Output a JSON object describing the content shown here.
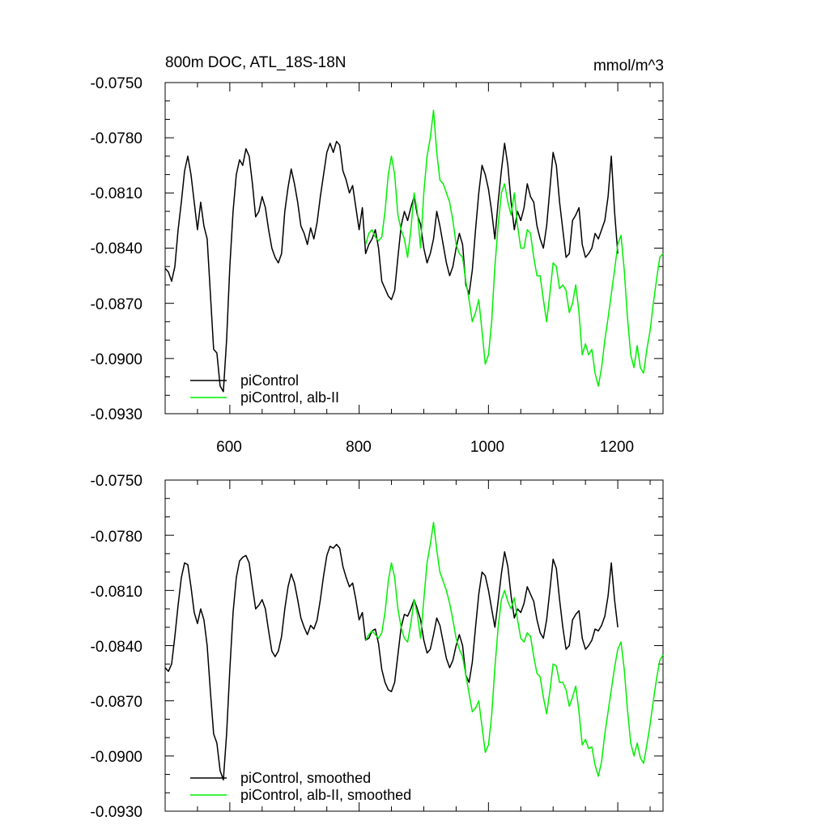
{
  "colors": {
    "piControl": "#000000",
    "alb_II": "#00ee00"
  },
  "chart_data": [
    {
      "type": "line",
      "title": "800m DOC, ATL_18S-18N",
      "units": "mmol/m^3",
      "xlim": [
        500,
        1270
      ],
      "ylim": [
        -0.093,
        -0.075
      ],
      "xticks": [
        "600",
        "800",
        "1000",
        "1200"
      ],
      "yticks": [
        "-0.0750",
        "-0.0780",
        "-0.0810",
        "-0.0840",
        "-0.0870",
        "-0.0900",
        "-0.0930"
      ],
      "legend": [
        "piControl",
        "piControl, alb-II"
      ],
      "series": [
        {
          "name": "piControl",
          "color": "#000000",
          "x": [
            500,
            505,
            510,
            515,
            520,
            525,
            530,
            535,
            540,
            545,
            550,
            555,
            560,
            565,
            570,
            575,
            580,
            585,
            590,
            595,
            600,
            605,
            610,
            615,
            620,
            625,
            630,
            635,
            640,
            645,
            650,
            655,
            660,
            665,
            670,
            675,
            680,
            685,
            690,
            695,
            700,
            705,
            710,
            715,
            720,
            725,
            730,
            735,
            740,
            745,
            750,
            755,
            760,
            765,
            770,
            775,
            780,
            785,
            790,
            795,
            800,
            805,
            810,
            815,
            820,
            825,
            830,
            835,
            840,
            845,
            850,
            855,
            860,
            865,
            870,
            875,
            880,
            885,
            890,
            895,
            900,
            905,
            910,
            915,
            920,
            925,
            930,
            935,
            940,
            945,
            950,
            955,
            960,
            965,
            970,
            975,
            980,
            985,
            990,
            995,
            1000,
            1005,
            1010,
            1015,
            1020,
            1025,
            1030,
            1035,
            1040,
            1045,
            1050,
            1055,
            1060,
            1065,
            1070,
            1075,
            1080,
            1085,
            1090,
            1095,
            1100,
            1105,
            1110,
            1115,
            1120,
            1125,
            1130,
            1135,
            1140,
            1145,
            1150,
            1155,
            1160,
            1165,
            1170,
            1175,
            1180,
            1185,
            1190,
            1195,
            1200
          ],
          "y": [
            -0.0851,
            -0.0853,
            -0.0858,
            -0.085,
            -0.083,
            -0.0815,
            -0.0798,
            -0.079,
            -0.08,
            -0.0815,
            -0.083,
            -0.0815,
            -0.0828,
            -0.0835,
            -0.0865,
            -0.0895,
            -0.0897,
            -0.0915,
            -0.0918,
            -0.089,
            -0.085,
            -0.082,
            -0.08,
            -0.0792,
            -0.0795,
            -0.0786,
            -0.079,
            -0.0805,
            -0.0823,
            -0.082,
            -0.0812,
            -0.0818,
            -0.083,
            -0.084,
            -0.0845,
            -0.0848,
            -0.0843,
            -0.082,
            -0.0807,
            -0.0797,
            -0.0805,
            -0.0815,
            -0.0828,
            -0.0832,
            -0.0838,
            -0.0829,
            -0.0835,
            -0.0826,
            -0.0812,
            -0.08,
            -0.0788,
            -0.0783,
            -0.0788,
            -0.0782,
            -0.0784,
            -0.0798,
            -0.0803,
            -0.081,
            -0.0806,
            -0.0818,
            -0.083,
            -0.0818,
            -0.0843,
            -0.0838,
            -0.0835,
            -0.083,
            -0.084,
            -0.0858,
            -0.0862,
            -0.0866,
            -0.0868,
            -0.0863,
            -0.0845,
            -0.0828,
            -0.082,
            -0.0825,
            -0.0818,
            -0.0812,
            -0.0822,
            -0.0827,
            -0.084,
            -0.0848,
            -0.0843,
            -0.0835,
            -0.082,
            -0.0828,
            -0.0838,
            -0.0848,
            -0.0855,
            -0.085,
            -0.084,
            -0.0832,
            -0.0838,
            -0.086,
            -0.0865,
            -0.0852,
            -0.083,
            -0.081,
            -0.0795,
            -0.08,
            -0.0808,
            -0.082,
            -0.0835,
            -0.0815,
            -0.0798,
            -0.0783,
            -0.0795,
            -0.0815,
            -0.083,
            -0.082,
            -0.0825,
            -0.0818,
            -0.0805,
            -0.0812,
            -0.0815,
            -0.0828,
            -0.0835,
            -0.084,
            -0.0828,
            -0.0808,
            -0.0788,
            -0.0795,
            -0.0815,
            -0.083,
            -0.0845,
            -0.0843,
            -0.0825,
            -0.0822,
            -0.0818,
            -0.0838,
            -0.0845,
            -0.0843,
            -0.084,
            -0.0832,
            -0.0835,
            -0.083,
            -0.0825,
            -0.0812,
            -0.079,
            -0.082,
            -0.0843
          ]
        },
        {
          "name": "piControl, alb-II",
          "color": "#00ee00",
          "x": [
            810,
            815,
            820,
            825,
            830,
            835,
            840,
            845,
            850,
            855,
            860,
            865,
            870,
            875,
            880,
            885,
            890,
            895,
            900,
            905,
            910,
            915,
            920,
            925,
            930,
            935,
            940,
            945,
            950,
            955,
            960,
            965,
            970,
            975,
            980,
            985,
            990,
            995,
            1000,
            1005,
            1010,
            1015,
            1020,
            1025,
            1030,
            1035,
            1040,
            1045,
            1050,
            1055,
            1060,
            1065,
            1070,
            1075,
            1080,
            1085,
            1090,
            1095,
            1100,
            1105,
            1110,
            1115,
            1120,
            1125,
            1130,
            1135,
            1140,
            1145,
            1150,
            1155,
            1160,
            1165,
            1170,
            1175,
            1180,
            1185,
            1190,
            1195,
            1200,
            1205,
            1210,
            1215,
            1220,
            1225,
            1230,
            1235,
            1240,
            1245,
            1250,
            1255,
            1260,
            1265,
            1270
          ],
          "y": [
            -0.0838,
            -0.0832,
            -0.083,
            -0.0834,
            -0.0836,
            -0.0834,
            -0.082,
            -0.08,
            -0.079,
            -0.08,
            -0.0822,
            -0.083,
            -0.0835,
            -0.0845,
            -0.083,
            -0.081,
            -0.082,
            -0.084,
            -0.081,
            -0.079,
            -0.078,
            -0.0765,
            -0.0788,
            -0.0803,
            -0.0805,
            -0.081,
            -0.0815,
            -0.0825,
            -0.0838,
            -0.0843,
            -0.0845,
            -0.0858,
            -0.0868,
            -0.088,
            -0.0875,
            -0.0868,
            -0.0885,
            -0.0903,
            -0.0898,
            -0.088,
            -0.085,
            -0.0828,
            -0.081,
            -0.0805,
            -0.0815,
            -0.0822,
            -0.081,
            -0.0828,
            -0.084,
            -0.084,
            -0.083,
            -0.0832,
            -0.0845,
            -0.0855,
            -0.0855,
            -0.0868,
            -0.088,
            -0.0865,
            -0.0848,
            -0.085,
            -0.0862,
            -0.086,
            -0.0863,
            -0.0875,
            -0.087,
            -0.086,
            -0.0875,
            -0.0898,
            -0.0892,
            -0.0898,
            -0.0895,
            -0.0908,
            -0.0915,
            -0.0905,
            -0.089,
            -0.0878,
            -0.0865,
            -0.0852,
            -0.0838,
            -0.0833,
            -0.0852,
            -0.0878,
            -0.0898,
            -0.0905,
            -0.0893,
            -0.0905,
            -0.0908,
            -0.0895,
            -0.0885,
            -0.087,
            -0.0857,
            -0.0845,
            -0.0843
          ]
        }
      ]
    },
    {
      "type": "line",
      "xlim": [
        500,
        1270
      ],
      "ylim": [
        -0.093,
        -0.075
      ],
      "yticks": [
        "-0.0750",
        "-0.0780",
        "-0.0810",
        "-0.0840",
        "-0.0870",
        "-0.0900",
        "-0.0930"
      ],
      "legend": [
        "piControl, smoothed",
        "piControl, alb-II, smoothed"
      ],
      "series": [
        {
          "name": "piControl, smoothed",
          "color": "#000000",
          "x": [
            500,
            505,
            510,
            515,
            520,
            525,
            530,
            535,
            540,
            545,
            550,
            555,
            560,
            565,
            570,
            575,
            580,
            585,
            590,
            595,
            600,
            605,
            610,
            615,
            620,
            625,
            630,
            635,
            640,
            645,
            650,
            655,
            660,
            665,
            670,
            675,
            680,
            685,
            690,
            695,
            700,
            705,
            710,
            715,
            720,
            725,
            730,
            735,
            740,
            745,
            750,
            755,
            760,
            765,
            770,
            775,
            780,
            785,
            790,
            795,
            800,
            805,
            810,
            815,
            820,
            825,
            830,
            835,
            840,
            845,
            850,
            855,
            860,
            865,
            870,
            875,
            880,
            885,
            890,
            895,
            900,
            905,
            910,
            915,
            920,
            925,
            930,
            935,
            940,
            945,
            950,
            955,
            960,
            965,
            970,
            975,
            980,
            985,
            990,
            995,
            1000,
            1005,
            1010,
            1015,
            1020,
            1025,
            1030,
            1035,
            1040,
            1045,
            1050,
            1055,
            1060,
            1065,
            1070,
            1075,
            1080,
            1085,
            1090,
            1095,
            1100,
            1105,
            1110,
            1115,
            1120,
            1125,
            1130,
            1135,
            1140,
            1145,
            1150,
            1155,
            1160,
            1165,
            1170,
            1175,
            1180,
            1185,
            1190,
            1195,
            1200
          ],
          "y": [
            -0.0852,
            -0.0854,
            -0.085,
            -0.0835,
            -0.0818,
            -0.0803,
            -0.0795,
            -0.0796,
            -0.0808,
            -0.0822,
            -0.0828,
            -0.082,
            -0.0826,
            -0.084,
            -0.0865,
            -0.0888,
            -0.0893,
            -0.0908,
            -0.0913,
            -0.0888,
            -0.0853,
            -0.0822,
            -0.0803,
            -0.0794,
            -0.0792,
            -0.0791,
            -0.0795,
            -0.0808,
            -0.082,
            -0.0818,
            -0.0815,
            -0.082,
            -0.0832,
            -0.0843,
            -0.0846,
            -0.0843,
            -0.0835,
            -0.082,
            -0.0808,
            -0.0801,
            -0.0806,
            -0.0815,
            -0.0825,
            -0.083,
            -0.0834,
            -0.0829,
            -0.0831,
            -0.0826,
            -0.0815,
            -0.0802,
            -0.0791,
            -0.0786,
            -0.0787,
            -0.0785,
            -0.0787,
            -0.0797,
            -0.0803,
            -0.0808,
            -0.0806,
            -0.0815,
            -0.0826,
            -0.0822,
            -0.0837,
            -0.0836,
            -0.0832,
            -0.0831,
            -0.0839,
            -0.0853,
            -0.086,
            -0.0864,
            -0.0865,
            -0.086,
            -0.0845,
            -0.083,
            -0.0823,
            -0.0824,
            -0.082,
            -0.0815,
            -0.082,
            -0.0826,
            -0.0837,
            -0.0844,
            -0.0842,
            -0.0834,
            -0.0825,
            -0.0829,
            -0.0838,
            -0.0847,
            -0.0852,
            -0.0848,
            -0.084,
            -0.0834,
            -0.084,
            -0.0856,
            -0.086,
            -0.0849,
            -0.083,
            -0.0812,
            -0.08,
            -0.0802,
            -0.081,
            -0.082,
            -0.083,
            -0.0816,
            -0.0801,
            -0.0789,
            -0.0797,
            -0.0813,
            -0.0825,
            -0.082,
            -0.0822,
            -0.0817,
            -0.0808,
            -0.0812,
            -0.0816,
            -0.0826,
            -0.0833,
            -0.0836,
            -0.0826,
            -0.081,
            -0.0793,
            -0.0798,
            -0.0815,
            -0.083,
            -0.0842,
            -0.084,
            -0.0826,
            -0.0823,
            -0.0821,
            -0.0836,
            -0.0842,
            -0.084,
            -0.0837,
            -0.0831,
            -0.0832,
            -0.0829,
            -0.0824,
            -0.0813,
            -0.0795,
            -0.0815,
            -0.083
          ]
        },
        {
          "name": "piControl, alb-II, smoothed",
          "color": "#00ee00",
          "x": [
            810,
            815,
            820,
            825,
            830,
            835,
            840,
            845,
            850,
            855,
            860,
            865,
            870,
            875,
            880,
            885,
            890,
            895,
            900,
            905,
            910,
            915,
            920,
            925,
            930,
            935,
            940,
            945,
            950,
            955,
            960,
            965,
            970,
            975,
            980,
            985,
            990,
            995,
            1000,
            1005,
            1010,
            1015,
            1020,
            1025,
            1030,
            1035,
            1040,
            1045,
            1050,
            1055,
            1060,
            1065,
            1070,
            1075,
            1080,
            1085,
            1090,
            1095,
            1100,
            1105,
            1110,
            1115,
            1120,
            1125,
            1130,
            1135,
            1140,
            1145,
            1150,
            1155,
            1160,
            1165,
            1170,
            1175,
            1180,
            1185,
            1190,
            1195,
            1200,
            1205,
            1210,
            1215,
            1220,
            1225,
            1230,
            1235,
            1240,
            1245,
            1250,
            1255,
            1260,
            1265,
            1270
          ],
          "y": [
            -0.0837,
            -0.0834,
            -0.0832,
            -0.0834,
            -0.0836,
            -0.0833,
            -0.0822,
            -0.0805,
            -0.0795,
            -0.0803,
            -0.082,
            -0.083,
            -0.0836,
            -0.0838,
            -0.0828,
            -0.0815,
            -0.0823,
            -0.0836,
            -0.0815,
            -0.0795,
            -0.0785,
            -0.0773,
            -0.0788,
            -0.08,
            -0.0805,
            -0.081,
            -0.0817,
            -0.0826,
            -0.0836,
            -0.0842,
            -0.0846,
            -0.0856,
            -0.0866,
            -0.0876,
            -0.0874,
            -0.087,
            -0.0884,
            -0.0898,
            -0.0894,
            -0.0878,
            -0.0852,
            -0.083,
            -0.0815,
            -0.081,
            -0.0816,
            -0.082,
            -0.0814,
            -0.0826,
            -0.0836,
            -0.0838,
            -0.0833,
            -0.0835,
            -0.0846,
            -0.0855,
            -0.0857,
            -0.0868,
            -0.0877,
            -0.0865,
            -0.085,
            -0.0851,
            -0.086,
            -0.086,
            -0.0864,
            -0.0873,
            -0.0868,
            -0.0862,
            -0.0876,
            -0.0894,
            -0.0891,
            -0.0896,
            -0.0895,
            -0.0905,
            -0.0911,
            -0.0903,
            -0.0888,
            -0.0876,
            -0.0864,
            -0.0852,
            -0.0842,
            -0.0838,
            -0.0853,
            -0.0875,
            -0.0893,
            -0.09,
            -0.0893,
            -0.0901,
            -0.0904,
            -0.0894,
            -0.0883,
            -0.087,
            -0.0858,
            -0.0848,
            -0.0845
          ]
        }
      ]
    }
  ]
}
